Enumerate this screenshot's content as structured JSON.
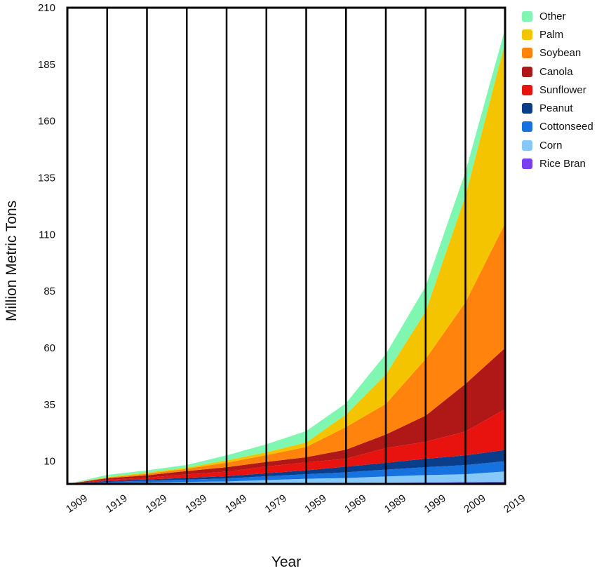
{
  "chart_data": {
    "type": "area",
    "stacked": true,
    "xlabel": "Year",
    "ylabel": "Million Metric Tons",
    "ylim": [
      0,
      210
    ],
    "yticks": [
      10,
      35,
      60,
      85,
      110,
      135,
      160,
      185,
      210
    ],
    "categories": [
      "1909",
      "1919",
      "1929",
      "1939",
      "1949",
      "1979",
      "1959",
      "1969",
      "1989",
      "1999",
      "2009",
      "2019"
    ],
    "grid": "vertical lines at each category",
    "legend_position": "top-right",
    "series": [
      {
        "name": "Rice Bran",
        "color": "#7B3FF2",
        "values": [
          0,
          0.1,
          0.1,
          0.1,
          0.1,
          0.2,
          0.3,
          0.4,
          0.5,
          0.6,
          0.8,
          1.0
        ]
      },
      {
        "name": "Corn",
        "color": "#86C8F8",
        "values": [
          0,
          0.3,
          0.5,
          0.8,
          1.0,
          1.5,
          2.0,
          2.2,
          2.8,
          3.3,
          3.5,
          4.5
        ]
      },
      {
        "name": "Cottonseed",
        "color": "#1672DE",
        "values": [
          0,
          0.5,
          0.8,
          1.0,
          1.3,
          1.7,
          2.0,
          2.5,
          3.0,
          3.5,
          4.0,
          4.5
        ]
      },
      {
        "name": "Peanut",
        "color": "#0A3E8A",
        "values": [
          0,
          0.4,
          0.6,
          0.8,
          1.0,
          1.3,
          1.7,
          2.5,
          3.0,
          3.7,
          4.3,
          5.0
        ]
      },
      {
        "name": "Sunflower",
        "color": "#E8130F",
        "values": [
          0,
          0.5,
          0.8,
          1.5,
          2.0,
          3.0,
          3.5,
          3.5,
          6.5,
          7.5,
          10.5,
          18.0
        ]
      },
      {
        "name": "Canola",
        "color": "#B01717",
        "values": [
          0,
          0.7,
          1.0,
          1.5,
          2.0,
          2.0,
          2.3,
          4.0,
          6.0,
          11.5,
          21.0,
          27.0
        ]
      },
      {
        "name": "Soybean",
        "color": "#FF830D",
        "values": [
          0,
          0.3,
          0.7,
          1.0,
          2.0,
          3.0,
          4.5,
          10.0,
          13.5,
          25.0,
          36.0,
          55.0
        ]
      },
      {
        "name": "Palm",
        "color": "#F5C400",
        "values": [
          0,
          0.2,
          0.5,
          0.5,
          1.0,
          1.3,
          2.0,
          5.5,
          13.0,
          21.0,
          47.0,
          80.0
        ]
      },
      {
        "name": "Other",
        "color": "#80F7B0",
        "values": [
          0,
          1.0,
          1.0,
          1.2,
          2.2,
          3.5,
          5.0,
          5.0,
          9.0,
          11.0,
          10.5,
          6.0
        ]
      }
    ]
  },
  "legend": {
    "items": [
      {
        "label": "Other",
        "color": "#80F7B0"
      },
      {
        "label": "Palm",
        "color": "#F5C400"
      },
      {
        "label": "Soybean",
        "color": "#FF830D"
      },
      {
        "label": "Canola",
        "color": "#B01717"
      },
      {
        "label": "Sunflower",
        "color": "#E8130F"
      },
      {
        "label": "Peanut",
        "color": "#0A3E8A"
      },
      {
        "label": "Cottonseed",
        "color": "#1672DE"
      },
      {
        "label": "Corn",
        "color": "#86C8F8"
      },
      {
        "label": "Rice Bran",
        "color": "#7B3FF2"
      }
    ]
  }
}
